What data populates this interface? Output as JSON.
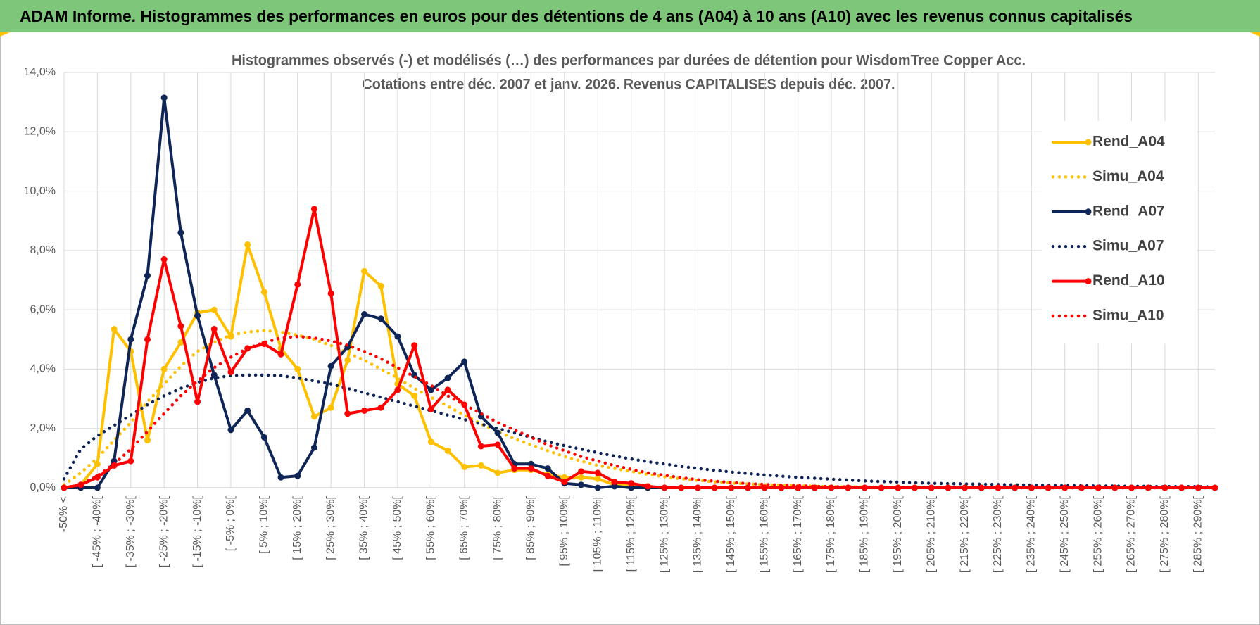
{
  "header": {
    "title": "ADAM Informe. Histogrammes des performances en euros pour des détentions de 4 ans (A04) à 10 ans (A10) avec les revenus connus capitalisés"
  },
  "chart_data": {
    "type": "line",
    "title": [
      "Histogrammes observés (-) et modélisés (…) des performances par durées de détention pour WisdomTree Copper Acc.",
      "Cotations entre déc. 2007 et janv. 2026.  Revenus CAPITALISES depuis déc. 2007."
    ],
    "categories": [
      "-50% <",
      null,
      "[ -45% ; -40%[",
      null,
      "[ -35% ; -30%[",
      null,
      "[ -25% ; -20%[",
      null,
      "[ -15% ; -10%[",
      null,
      "[ -5% ; 0%[",
      null,
      "[ 5% ; 10%[",
      null,
      "[ 15% ; 20%[",
      null,
      "[ 25% ; 30%[",
      null,
      "[ 35% ; 40%[",
      null,
      "[ 45% ; 50%[",
      null,
      "[ 55% ; 60%[",
      null,
      "[ 65% ; 70%[",
      null,
      "[ 75% ; 80%[",
      null,
      "[ 85% ; 90%[",
      null,
      "[ 95% ; 100%[",
      null,
      "[ 105% ; 110%[",
      null,
      "[ 115% ; 120%[",
      null,
      "[ 125% ; 130%[",
      null,
      "[ 135% ; 140%[",
      null,
      "[ 145% ; 150%[",
      null,
      "[ 155% ; 160%[",
      null,
      "[ 165% ; 170%[",
      null,
      "[ 175% ; 180%[",
      null,
      "[ 185% ; 190%[",
      null,
      "[ 195% ; 200%[",
      null,
      "[ 205% ; 210%[",
      null,
      "[ 215% ; 220%[",
      null,
      "[ 225% ; 230%[",
      null,
      "[ 235% ; 240%[",
      null,
      "[ 245% ; 250%[",
      null,
      "[ 255% ; 260%[",
      null,
      "[ 265% ; 270%[",
      null,
      "[ 275% ; 280%[",
      null,
      "[ 285% ; 290%[",
      null
    ],
    "series": [
      {
        "name": "Rend_A04",
        "color": "#ffc000",
        "line_style": "solid",
        "markers": true,
        "values": [
          0,
          0.1,
          0.8,
          5.35,
          4.6,
          1.6,
          4.0,
          4.9,
          5.9,
          6.0,
          5.1,
          8.2,
          6.6,
          4.7,
          4.0,
          2.4,
          2.7,
          4.3,
          7.3,
          6.8,
          3.5,
          3.1,
          1.55,
          1.25,
          0.7,
          0.75,
          0.5,
          0.6,
          0.6,
          0.45,
          0.35,
          0.35,
          0.3,
          0.1,
          0.1,
          0,
          0,
          0,
          0,
          0,
          0,
          0,
          0,
          0,
          0,
          0,
          0,
          0,
          0,
          0,
          0,
          0,
          0,
          0,
          0,
          0,
          0,
          0,
          0,
          0,
          0,
          0,
          0,
          0,
          0,
          0,
          0,
          0,
          0,
          0
        ]
      },
      {
        "name": "Simu_A04",
        "color": "#ffc000",
        "line_style": "dotted",
        "markers": false,
        "values": [
          0.1,
          0.5,
          1.0,
          1.6,
          2.2,
          2.9,
          3.5,
          4.1,
          4.6,
          4.9,
          5.15,
          5.25,
          5.3,
          5.25,
          5.15,
          5.0,
          4.8,
          4.55,
          4.3,
          4.0,
          3.7,
          3.35,
          3.05,
          2.75,
          2.45,
          2.15,
          1.9,
          1.65,
          1.45,
          1.25,
          1.05,
          0.9,
          0.75,
          0.65,
          0.55,
          0.45,
          0.37,
          0.3,
          0.25,
          0.2,
          0.16,
          0.13,
          0.1,
          0.08,
          0.07,
          0.05,
          0.04,
          0.03,
          0.03,
          0.02,
          0.02,
          0.01,
          0.01,
          0.01,
          0.01,
          0.01,
          0.01,
          0.01,
          0.01,
          0.01,
          0.01,
          0.01,
          0.01,
          0.01,
          0.01,
          0.01,
          0.01,
          0.01,
          0.01,
          0.01
        ]
      },
      {
        "name": "Rend_A07",
        "color": "#0f2557",
        "line_style": "solid",
        "markers": true,
        "values": [
          0,
          0,
          0,
          0.9,
          5.0,
          7.15,
          13.15,
          8.6,
          5.8,
          3.8,
          1.95,
          2.6,
          1.7,
          0.35,
          0.4,
          1.35,
          4.1,
          4.75,
          5.85,
          5.7,
          5.1,
          3.8,
          3.3,
          3.7,
          4.25,
          2.4,
          1.85,
          0.8,
          0.8,
          0.65,
          0.15,
          0.1,
          0,
          0.05,
          0,
          0,
          0,
          0,
          0,
          0,
          0,
          0,
          0,
          0,
          0,
          0,
          0,
          0,
          0,
          0,
          0,
          0,
          0,
          0,
          0,
          0,
          0,
          0,
          0,
          0,
          0,
          0,
          0,
          0,
          0,
          0,
          0,
          0,
          0,
          0
        ]
      },
      {
        "name": "Simu_A07",
        "color": "#0f2557",
        "line_style": "dotted",
        "markers": false,
        "values": [
          0.3,
          1.3,
          1.75,
          2.1,
          2.45,
          2.8,
          3.1,
          3.35,
          3.55,
          3.7,
          3.78,
          3.8,
          3.8,
          3.78,
          3.7,
          3.6,
          3.5,
          3.35,
          3.2,
          3.05,
          2.9,
          2.75,
          2.6,
          2.45,
          2.3,
          2.15,
          2.0,
          1.85,
          1.7,
          1.55,
          1.42,
          1.3,
          1.18,
          1.07,
          0.97,
          0.88,
          0.8,
          0.72,
          0.65,
          0.59,
          0.53,
          0.48,
          0.43,
          0.39,
          0.35,
          0.32,
          0.29,
          0.26,
          0.23,
          0.21,
          0.19,
          0.17,
          0.15,
          0.14,
          0.13,
          0.12,
          0.11,
          0.1,
          0.09,
          0.08,
          0.07,
          0.07,
          0.06,
          0.06,
          0.05,
          0.05,
          0.04,
          0.04,
          0.04,
          0.03
        ]
      },
      {
        "name": "Rend_A10",
        "color": "#ff0000",
        "line_style": "solid",
        "markers": true,
        "values": [
          0,
          0.1,
          0.35,
          0.75,
          0.9,
          5.0,
          7.7,
          5.45,
          2.9,
          5.35,
          3.9,
          4.7,
          4.85,
          4.5,
          6.85,
          9.4,
          6.55,
          2.5,
          2.6,
          2.7,
          3.3,
          4.8,
          2.65,
          3.3,
          2.8,
          1.4,
          1.45,
          0.65,
          0.65,
          0.4,
          0.2,
          0.55,
          0.5,
          0.2,
          0.15,
          0.05,
          0,
          0,
          0,
          0,
          0,
          0,
          0,
          0,
          0,
          0,
          0,
          0,
          0,
          0,
          0,
          0,
          0,
          0,
          0,
          0,
          0,
          0,
          0,
          0,
          0,
          0,
          0,
          0,
          0,
          0,
          0,
          0,
          0,
          0
        ]
      },
      {
        "name": "Simu_A10",
        "color": "#ff0000",
        "line_style": "dotted",
        "markers": false,
        "values": [
          0,
          0.1,
          0.4,
          0.8,
          1.3,
          1.9,
          2.5,
          3.1,
          3.6,
          4.05,
          4.4,
          4.7,
          4.9,
          5.05,
          5.1,
          5.05,
          4.95,
          4.8,
          4.6,
          4.35,
          4.05,
          3.75,
          3.45,
          3.1,
          2.8,
          2.5,
          2.2,
          1.95,
          1.7,
          1.45,
          1.25,
          1.05,
          0.9,
          0.75,
          0.62,
          0.5,
          0.42,
          0.34,
          0.27,
          0.22,
          0.18,
          0.14,
          0.11,
          0.09,
          0.07,
          0.05,
          0.04,
          0.03,
          0.02,
          0.02,
          0.01,
          0.01,
          0.01,
          0.01,
          0.01,
          0,
          0,
          0,
          0,
          0,
          0,
          0,
          0,
          0,
          0,
          0,
          0,
          0,
          0,
          0
        ]
      }
    ],
    "ylim": [
      0,
      14
    ],
    "yticks": [
      {
        "value": 0,
        "label": "0,0%"
      },
      {
        "value": 2,
        "label": "2,0%"
      },
      {
        "value": 4,
        "label": "4,0%"
      },
      {
        "value": 6,
        "label": "6,0%"
      },
      {
        "value": 8,
        "label": "8,0%"
      },
      {
        "value": 10,
        "label": "10,0%"
      },
      {
        "value": 12,
        "label": "12,0%"
      },
      {
        "value": 14,
        "label": "14,0%"
      }
    ],
    "grid": true,
    "legend": "right"
  }
}
